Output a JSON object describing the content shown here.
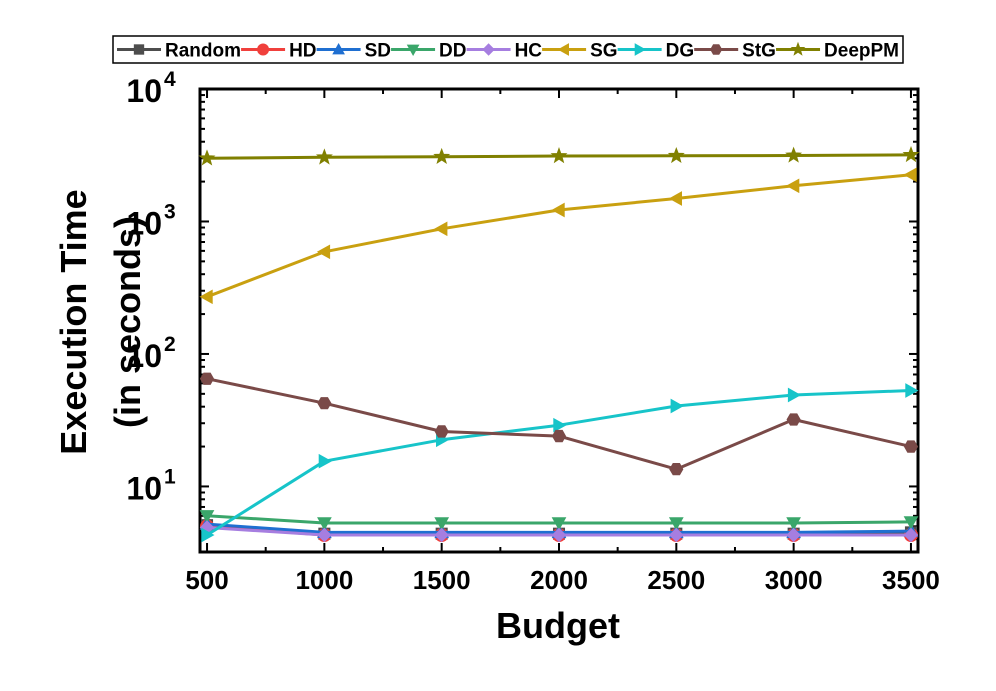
{
  "chart_data": {
    "type": "line",
    "xlabel": "Budget",
    "ylabel_line1": "Execution Time",
    "ylabel_line2": "(in seconds)",
    "y_scale": "log",
    "xlim": [
      470,
      3530
    ],
    "ylim": [
      3.2,
      10000
    ],
    "x_ticks": [
      500,
      1000,
      1500,
      2000,
      2500,
      3000,
      3500
    ],
    "x_tick_labels": [
      "500",
      "1000",
      "1500",
      "2000",
      "2500",
      "3000",
      "3500"
    ],
    "y_ticks": [
      10,
      100,
      1000,
      10000
    ],
    "y_tick_labels": [
      {
        "base": "10",
        "exp": "1"
      },
      {
        "base": "10",
        "exp": "2"
      },
      {
        "base": "10",
        "exp": "3"
      },
      {
        "base": "10",
        "exp": "4"
      }
    ],
    "legend_position": "top",
    "grid": false,
    "x": [
      500,
      1000,
      1500,
      2000,
      2500,
      3000,
      3500
    ],
    "series": [
      {
        "name": "Random",
        "color": "#4d4d4d",
        "marker": "square",
        "values": [
          5.1,
          4.4,
          4.4,
          4.4,
          4.4,
          4.4,
          4.5
        ]
      },
      {
        "name": "HD",
        "color": "#f0403c",
        "marker": "circle",
        "values": [
          5.0,
          4.3,
          4.3,
          4.3,
          4.3,
          4.3,
          4.3
        ]
      },
      {
        "name": "SD",
        "color": "#1f6fd1",
        "marker": "triangle-up",
        "values": [
          5.2,
          4.5,
          4.5,
          4.5,
          4.5,
          4.5,
          4.6
        ]
      },
      {
        "name": "DD",
        "color": "#3aa66a",
        "marker": "triangle-down",
        "values": [
          6.0,
          5.3,
          5.3,
          5.3,
          5.3,
          5.3,
          5.4
        ]
      },
      {
        "name": "HC",
        "color": "#a67ee0",
        "marker": "diamond",
        "values": [
          4.9,
          4.3,
          4.3,
          4.3,
          4.3,
          4.3,
          4.3
        ]
      },
      {
        "name": "SG",
        "color": "#c9a010",
        "marker": "triangle-left",
        "values": [
          270,
          590,
          880,
          1220,
          1490,
          1860,
          2250
        ]
      },
      {
        "name": "DG",
        "color": "#17c4c9",
        "marker": "triangle-right",
        "values": [
          4.3,
          15.5,
          22.5,
          29,
          40.5,
          49,
          53
        ]
      },
      {
        "name": "StG",
        "color": "#7a4a48",
        "marker": "hexagon",
        "values": [
          65,
          42.5,
          26,
          24,
          13.5,
          32,
          20
        ]
      },
      {
        "name": "DeepPM",
        "color": "#808000",
        "marker": "star",
        "values": [
          3000,
          3050,
          3080,
          3120,
          3130,
          3150,
          3180
        ]
      }
    ]
  }
}
